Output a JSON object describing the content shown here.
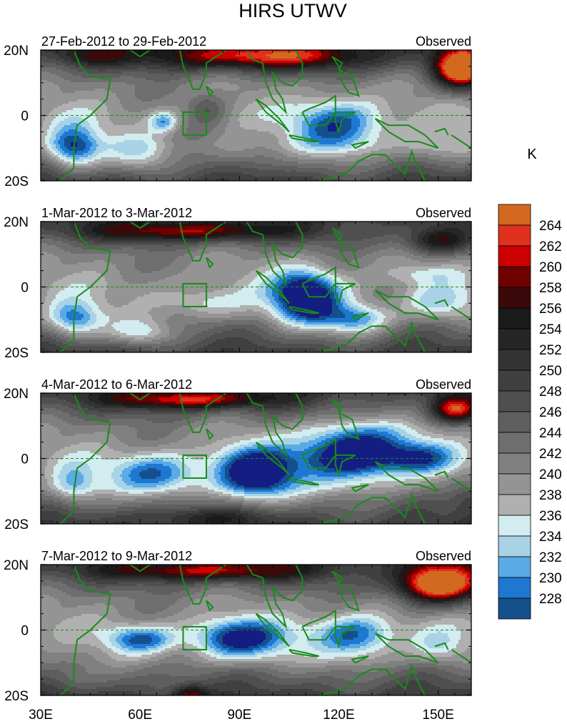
{
  "chart_data": {
    "type": "heatmap",
    "title": "HIRS UTWV",
    "colorbar_label": "K",
    "x_ticks": [
      "30E",
      "60E",
      "90E",
      "120E",
      "150E"
    ],
    "x_tick_values": [
      30,
      60,
      90,
      120,
      150
    ],
    "y_ticks": [
      "20N",
      "0",
      "20S"
    ],
    "y_tick_values": [
      20,
      0,
      -20
    ],
    "xlim": [
      30,
      160
    ],
    "ylim": [
      -20,
      20
    ],
    "colorbar_ticks": [
      "264",
      "262",
      "260",
      "258",
      "256",
      "254",
      "252",
      "250",
      "248",
      "246",
      "244",
      "242",
      "240",
      "238",
      "236",
      "234",
      "232",
      "230",
      "228"
    ],
    "color_levels": [
      {
        "value": 266,
        "color": "#d2691e"
      },
      {
        "value": 264,
        "color": "#e0301e"
      },
      {
        "value": 262,
        "color": "#cc0000"
      },
      {
        "value": 260,
        "color": "#6e0000"
      },
      {
        "value": 258,
        "color": "#3a0a0a"
      },
      {
        "value": 256,
        "color": "#1a1a1a"
      },
      {
        "value": 254,
        "color": "#262626"
      },
      {
        "value": 252,
        "color": "#333333"
      },
      {
        "value": 250,
        "color": "#404040"
      },
      {
        "value": 248,
        "color": "#4f4f4f"
      },
      {
        "value": 246,
        "color": "#5e5e5e"
      },
      {
        "value": 244,
        "color": "#6e6e6e"
      },
      {
        "value": 242,
        "color": "#808080"
      },
      {
        "value": 240,
        "color": "#949494"
      },
      {
        "value": 238,
        "color": "#b0b0b0"
      },
      {
        "value": 236,
        "color": "#d2ecef"
      },
      {
        "value": 234,
        "color": "#a9d2e6"
      },
      {
        "value": 232,
        "color": "#5aaae6"
      },
      {
        "value": 230,
        "color": "#1e78d2"
      },
      {
        "value": 228,
        "color": "#14508c"
      },
      {
        "value": 226,
        "color": "#141e82"
      }
    ],
    "box_region": {
      "lon": [
        73,
        80
      ],
      "lat": [
        -6,
        1
      ]
    },
    "panels": [
      {
        "period": "27-Feb-2012 to 29-Feb-2012",
        "label": "Observed",
        "features": [
          {
            "lon": 95,
            "lat": 18,
            "slon": 35,
            "slat": 4,
            "v": 16
          },
          {
            "lon": 45,
            "lat": 18,
            "slon": 10,
            "slat": 3,
            "v": 6
          },
          {
            "lon": 157,
            "lat": 14,
            "slon": 8,
            "slat": 6,
            "v": 28
          },
          {
            "lon": 40,
            "lat": -10,
            "slon": 8,
            "slat": 7,
            "v": -16
          },
          {
            "lon": 67,
            "lat": -2,
            "slon": 4,
            "slat": 3,
            "v": -9
          },
          {
            "lon": 120,
            "lat": -4,
            "slon": 14,
            "slat": 9,
            "v": -13
          },
          {
            "lon": 60,
            "lat": -12,
            "slon": 10,
            "slat": 6,
            "v": -8
          },
          {
            "lon": 150,
            "lat": -10,
            "slon": 12,
            "slat": 6,
            "v": -6
          },
          {
            "lon": 90,
            "lat": -12,
            "slon": 9,
            "slat": 5,
            "v": -4
          },
          {
            "lon": 80,
            "lat": 2,
            "slon": 6,
            "slat": 5,
            "v": 6
          }
        ]
      },
      {
        "period": "1-Mar-2012 to 3-Mar-2012",
        "label": "Observed",
        "features": [
          {
            "lon": 75,
            "lat": 17,
            "slon": 30,
            "slat": 3,
            "v": 14
          },
          {
            "lon": 150,
            "lat": 14,
            "slon": 9,
            "slat": 4,
            "v": 12
          },
          {
            "lon": 110,
            "lat": -3,
            "slon": 10,
            "slat": 8,
            "v": -20
          },
          {
            "lon": 125,
            "lat": -10,
            "slon": 10,
            "slat": 5,
            "v": -12
          },
          {
            "lon": 40,
            "lat": -10,
            "slon": 8,
            "slat": 6,
            "v": -13
          },
          {
            "lon": 60,
            "lat": -14,
            "slon": 10,
            "slat": 4,
            "v": -9
          },
          {
            "lon": 150,
            "lat": -5,
            "slon": 10,
            "slat": 5,
            "v": -7
          },
          {
            "lon": 80,
            "lat": -5,
            "slon": 14,
            "slat": 4,
            "v": -6
          },
          {
            "lon": 145,
            "lat": 4,
            "slon": 12,
            "slat": 3,
            "v": -4
          }
        ]
      },
      {
        "period": "4-Mar-2012 to 6-Mar-2012",
        "label": "Observed",
        "features": [
          {
            "lon": 75,
            "lat": 18,
            "slon": 24,
            "slat": 3,
            "v": 16
          },
          {
            "lon": 155,
            "lat": 15,
            "slon": 7,
            "slat": 4,
            "v": 18
          },
          {
            "lon": 95,
            "lat": -5,
            "slon": 12,
            "slat": 8,
            "v": -20
          },
          {
            "lon": 125,
            "lat": 2,
            "slon": 16,
            "slat": 9,
            "v": -20
          },
          {
            "lon": 65,
            "lat": -5,
            "slon": 14,
            "slat": 6,
            "v": -12
          },
          {
            "lon": 40,
            "lat": -8,
            "slon": 7,
            "slat": 6,
            "v": -9
          },
          {
            "lon": 145,
            "lat": 0,
            "slon": 10,
            "slat": 5,
            "v": -10
          },
          {
            "lon": 160,
            "lat": -12,
            "slon": 6,
            "slat": 6,
            "v": 6
          },
          {
            "lon": 80,
            "lat": -18,
            "slon": 20,
            "slat": 3,
            "v": 6
          }
        ]
      },
      {
        "period": "7-Mar-2012 to 9-Mar-2012",
        "label": "Observed",
        "features": [
          {
            "lon": 80,
            "lat": 18,
            "slon": 30,
            "slat": 3,
            "v": 14
          },
          {
            "lon": 150,
            "lat": 14,
            "slon": 12,
            "slat": 6,
            "v": 28
          },
          {
            "lon": 90,
            "lat": -3,
            "slon": 14,
            "slat": 6,
            "v": -16
          },
          {
            "lon": 125,
            "lat": -2,
            "slon": 12,
            "slat": 7,
            "v": -12
          },
          {
            "lon": 60,
            "lat": -3,
            "slon": 10,
            "slat": 4,
            "v": -12
          },
          {
            "lon": 150,
            "lat": -5,
            "slon": 8,
            "slat": 5,
            "v": -6
          },
          {
            "lon": 75,
            "lat": -20,
            "slon": 5,
            "slat": 3,
            "v": 12
          },
          {
            "lon": 40,
            "lat": -15,
            "slon": 8,
            "slat": 4,
            "v": -3
          }
        ]
      }
    ]
  }
}
